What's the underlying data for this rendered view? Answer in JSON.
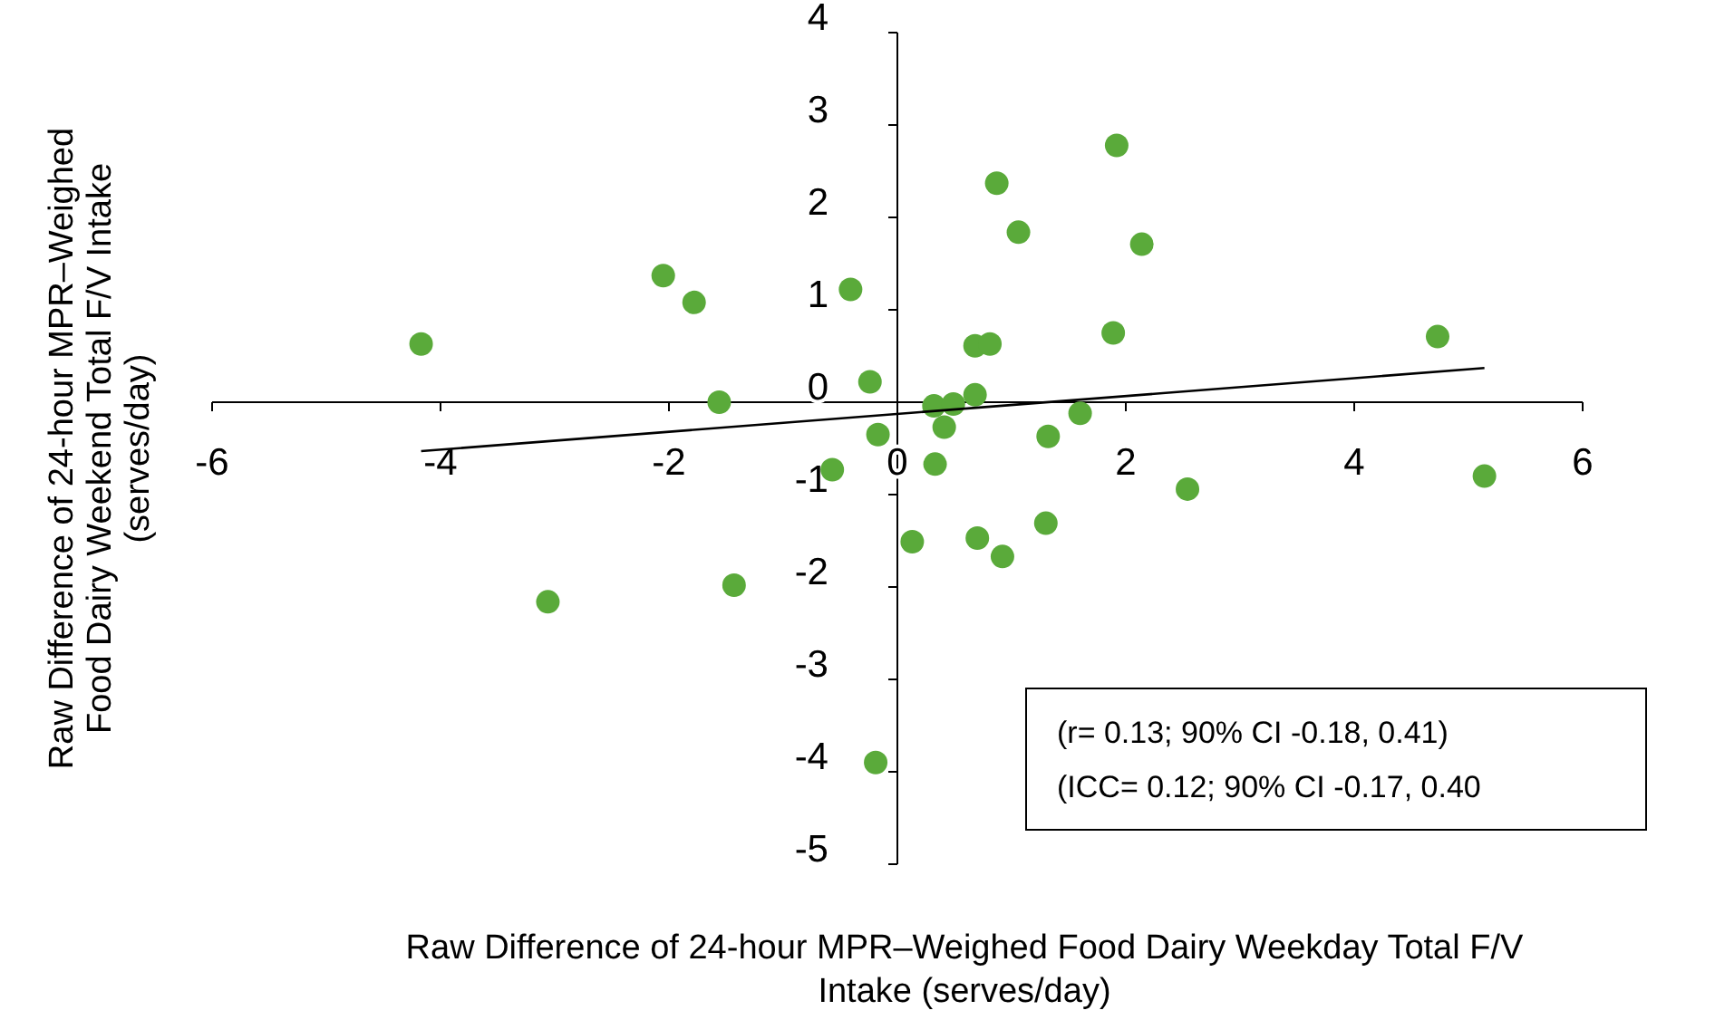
{
  "chart_data": {
    "type": "scatter",
    "xlabel": "Raw Difference of 24-hour MPR–Weighed Food Dairy Weekday Total F/V Intake (serves/day)",
    "ylabel": "Raw Difference of 24-hour MPR–Weighed Food Dairy Weekend Total F/V Intake (serves/day)",
    "xlim": [
      -6,
      6
    ],
    "ylim": [
      -5,
      4
    ],
    "xticks": [
      -6,
      -4,
      -2,
      0,
      2,
      4,
      6
    ],
    "yticks": [
      -5,
      -4,
      -3,
      -2,
      -1,
      0,
      1,
      2,
      3,
      4
    ],
    "grid": false,
    "marker": "circle",
    "annotations": [
      "(r= 0.13; 90% CI -0.18, 0.41)",
      "(ICC= 0.12; 90% CI -0.17, 0.40"
    ],
    "series": [
      {
        "color": "#5aaa3a",
        "x": [
          -4.17,
          -3.06,
          -2.05,
          -1.78,
          -1.56,
          -1.43,
          -0.57,
          -0.41,
          -0.24,
          -0.17,
          -0.19,
          0.13,
          0.32,
          0.33,
          0.41,
          0.49,
          0.68,
          0.68,
          0.7,
          0.81,
          0.87,
          0.92,
          1.06,
          1.3,
          1.32,
          1.6,
          1.89,
          1.92,
          2.14,
          2.54,
          4.73,
          5.14
        ],
        "values": [
          0.63,
          -2.16,
          1.37,
          1.08,
          0.0,
          -1.98,
          -0.73,
          1.22,
          0.22,
          -0.35,
          -3.9,
          -1.51,
          -0.04,
          -0.67,
          -0.27,
          -0.02,
          0.08,
          0.61,
          -1.47,
          0.63,
          2.37,
          -1.67,
          1.84,
          -1.31,
          -0.37,
          -0.12,
          0.75,
          2.78,
          1.71,
          -0.94,
          0.71,
          -0.8
        ]
      },
      {
        "type": "line",
        "marker": "none",
        "color": "#000000",
        "x": [
          -4.17,
          5.14
        ],
        "values": [
          -0.53,
          0.37
        ]
      }
    ]
  }
}
